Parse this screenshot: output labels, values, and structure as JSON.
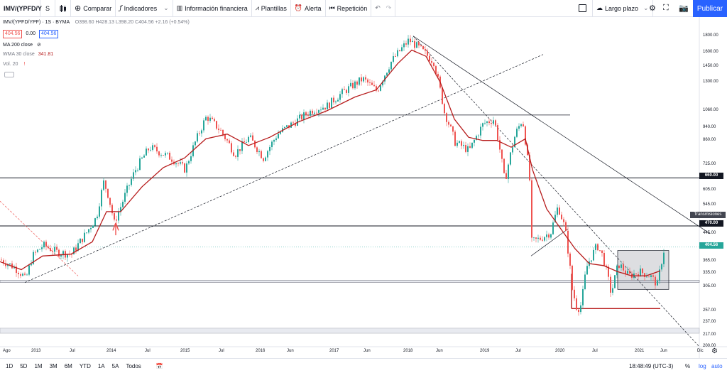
{
  "toolbar": {
    "symbol": "IMV/(YPFD/Y",
    "interval": "S",
    "compare": "Comparar",
    "indicators": "Indicadores",
    "financials": "Información financiera",
    "templates": "Plantillas",
    "alert": "Alerta",
    "replay": "Repetición",
    "layout": "Largo plazo",
    "publish": "Publicar"
  },
  "legend": {
    "title": "IMV/(YPFD/YPF) · 1S · BYMA",
    "ohlc": "O398.60 H428.13 L398.20 C404.56 +2.16 (+0.54%)",
    "bid": "404.56",
    "spread": "0.00",
    "ask": "404.56",
    "ma200": "MA 200 close",
    "wma30": "WMA 30 close",
    "wma30_value": "341.81",
    "vol": "Vol. 20"
  },
  "price_axis": [
    "1800.00",
    "1600.00",
    "1450.00",
    "1300.00",
    "1060.00",
    "940.00",
    "860.00",
    "725.00",
    "605.00",
    "545.00",
    "445.00",
    "365.00",
    "335.00",
    "305.00",
    "257.00",
    "237.00",
    "217.00",
    "200.00"
  ],
  "price_tags": {
    "p660": "660.00",
    "p470": "470.00",
    "last": "404.56",
    "drawing": "Transmisiones"
  },
  "time_axis": [
    "Ago",
    "2013",
    "Jul",
    "2014",
    "Jul",
    "2015",
    "Jul",
    "2016",
    "Jun",
    "2017",
    "Jun",
    "2018",
    "Jun",
    "2019",
    "Jul",
    "2020",
    "Jul",
    "2021",
    "Jun",
    "Dic"
  ],
  "bottombar": {
    "ranges": [
      "1D",
      "5D",
      "1M",
      "3M",
      "6M",
      "YTD",
      "1A",
      "5A",
      "Todos"
    ],
    "clock": "18:48:49 (UTC-3)",
    "pct": "%",
    "log": "log",
    "auto": "auto"
  },
  "colors": {
    "up": "#26a69a",
    "down": "#ef5350",
    "wma": "#b71c1c",
    "accent": "#2962ff"
  },
  "chart_data": {
    "type": "candlestick",
    "price_min": 200,
    "price_max": 1900,
    "scale": "log",
    "last_price": 404.56,
    "close_path": [
      [
        0,
        370
      ],
      [
        20,
        350
      ],
      [
        32,
        330
      ],
      [
        35,
        320
      ],
      [
        45,
        380
      ],
      [
        60,
        410
      ],
      [
        80,
        390
      ],
      [
        100,
        385
      ],
      [
        120,
        445
      ],
      [
        135,
        500
      ],
      [
        145,
        640
      ],
      [
        150,
        600
      ],
      [
        160,
        480
      ],
      [
        170,
        545
      ],
      [
        190,
        700
      ],
      [
        210,
        820
      ],
      [
        240,
        760
      ],
      [
        260,
        700
      ],
      [
        290,
        1020
      ],
      [
        310,
        920
      ],
      [
        330,
        780
      ],
      [
        350,
        880
      ],
      [
        370,
        760
      ],
      [
        390,
        900
      ],
      [
        420,
        1000
      ],
      [
        440,
        1070
      ],
      [
        460,
        1100
      ],
      [
        480,
        1200
      ],
      [
        510,
        1330
      ],
      [
        530,
        1220
      ],
      [
        550,
        1500
      ],
      [
        575,
        1750
      ],
      [
        590,
        1650
      ],
      [
        610,
        1500
      ],
      [
        625,
        1050
      ],
      [
        640,
        850
      ],
      [
        660,
        800
      ],
      [
        680,
        970
      ],
      [
        695,
        1000
      ],
      [
        710,
        640
      ],
      [
        725,
        900
      ],
      [
        735,
        1000
      ],
      [
        745,
        650
      ],
      [
        748,
        420
      ],
      [
        760,
        430
      ],
      [
        775,
        450
      ],
      [
        785,
        540
      ],
      [
        795,
        460
      ],
      [
        805,
        300
      ],
      [
        812,
        260
      ],
      [
        818,
        270
      ],
      [
        825,
        350
      ],
      [
        840,
        410
      ],
      [
        848,
        380
      ],
      [
        860,
        290
      ],
      [
        870,
        360
      ],
      [
        885,
        330
      ],
      [
        900,
        340
      ],
      [
        915,
        330
      ],
      [
        925,
        310
      ],
      [
        935,
        404
      ]
    ],
    "wma_path": [
      [
        0,
        365
      ],
      [
        30,
        345
      ],
      [
        60,
        380
      ],
      [
        100,
        385
      ],
      [
        130,
        420
      ],
      [
        150,
        520
      ],
      [
        170,
        520
      ],
      [
        200,
        620
      ],
      [
        230,
        710
      ],
      [
        260,
        760
      ],
      [
        290,
        870
      ],
      [
        320,
        900
      ],
      [
        350,
        830
      ],
      [
        380,
        880
      ],
      [
        420,
        980
      ],
      [
        460,
        1060
      ],
      [
        500,
        1170
      ],
      [
        530,
        1230
      ],
      [
        560,
        1480
      ],
      [
        580,
        1630
      ],
      [
        600,
        1560
      ],
      [
        620,
        1300
      ],
      [
        640,
        1000
      ],
      [
        660,
        880
      ],
      [
        680,
        860
      ],
      [
        700,
        860
      ],
      [
        720,
        820
      ],
      [
        740,
        870
      ],
      [
        750,
        700
      ],
      [
        770,
        530
      ],
      [
        790,
        460
      ],
      [
        810,
        400
      ],
      [
        830,
        360
      ],
      [
        850,
        355
      ],
      [
        870,
        340
      ],
      [
        890,
        330
      ],
      [
        910,
        330
      ],
      [
        930,
        342
      ]
    ],
    "horizontal_levels": [
      1030,
      660,
      470,
      320,
      315,
      228,
      220
    ],
    "segments": [
      {
        "from": [
          582,
          1800
        ],
        "to": [
          1000,
          445
        ]
      },
      {
        "from": [
          582,
          1800
        ],
        "to": [
          985,
          200
        ]
      },
      {
        "from": [
          35,
          315
        ],
        "to": [
          765,
          1580
        ]
      },
      {
        "from": [
          0,
          560
        ],
        "to": [
          110,
          330
        ]
      },
      {
        "from": [
          748,
          380
        ],
        "to": [
          800,
          460
        ]
      },
      {
        "from": [
          805,
          262
        ],
        "to": [
          930,
          262
        ]
      },
      {
        "from": [
          805,
          262
        ],
        "to": [
          805,
          335
        ]
      },
      {
        "from": [
          423,
          1030
        ],
        "to": [
          803,
          1030
        ]
      }
    ],
    "rectangles": [
      {
        "x0": 870,
        "x1": 942,
        "y0": 300,
        "y1": 395
      }
    ]
  }
}
